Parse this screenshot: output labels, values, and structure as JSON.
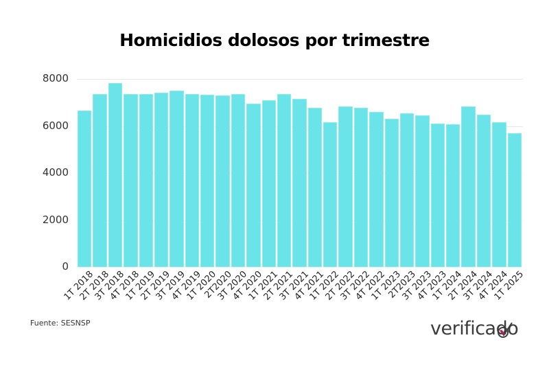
{
  "chart_data": {
    "type": "bar",
    "title": "Homicidios dolosos por trimestre",
    "xlabel": "",
    "ylabel": "",
    "ylim": [
      0,
      8000
    ],
    "yticks": [
      0,
      2000,
      4000,
      6000,
      8000
    ],
    "grid": true,
    "legend": null,
    "bar_color": "#6ae4e8",
    "categories": [
      "1T 2018",
      "2T 2018",
      "3T 2018",
      "4T 2018",
      "1T 2019",
      "2T 2019",
      "3T 2019",
      "4T 2019",
      "1T 2020",
      "2T2020",
      "3T 2020",
      "4T 2020",
      "1T 2021",
      "2T 2021",
      "3T 2021",
      "4T 2021",
      "1T 2022",
      "2T 2022",
      "3T 2022",
      "4T 2022",
      "1T 2023",
      "2T2023",
      "3T 2023",
      "4T 2023",
      "1T 2024",
      "2T 2024",
      "3T 2024",
      "4T 2024",
      "1T 2025"
    ],
    "values": [
      6650,
      7370,
      7820,
      7360,
      7360,
      7410,
      7490,
      7370,
      7340,
      7300,
      7360,
      6950,
      7090,
      7350,
      7150,
      6780,
      6170,
      6830,
      6780,
      6610,
      6310,
      6550,
      6460,
      6090,
      6080,
      6840,
      6490,
      6150,
      5700
    ]
  },
  "source": "Fuente: SESNSP",
  "brand": "verificado",
  "y_tick_labels": [
    "8000",
    "6000",
    "4000",
    "2000",
    "0"
  ]
}
